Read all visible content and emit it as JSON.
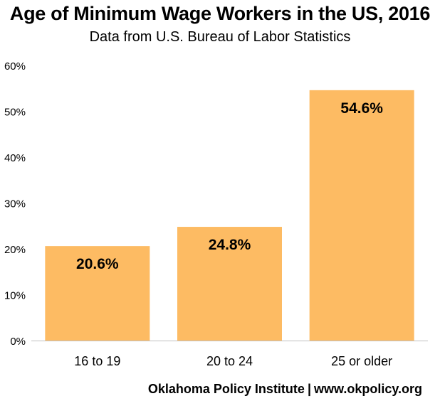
{
  "title": "Age of Minimum Wage Workers in the US, 2016",
  "subtitle": "Data from U.S. Bureau of Labor Statistics",
  "footer": {
    "org": "Oklahoma Policy Institute",
    "separator": "|",
    "url": "www.okpolicy.org"
  },
  "colors": {
    "bar": "#fdbb63",
    "gridline": "#d9d9d9",
    "axis": "#bfbfbf"
  },
  "chart_data": {
    "type": "bar",
    "categories": [
      "16 to 19",
      "20 to 24",
      "25 or older"
    ],
    "values": [
      20.6,
      24.8,
      54.6
    ],
    "data_labels": [
      "20.6%",
      "24.8%",
      "54.6%"
    ],
    "title": "Age of Minimum Wage Workers in the US, 2016",
    "subtitle": "Data from U.S. Bureau of Labor Statistics",
    "xlabel": "",
    "ylabel": "",
    "ylim": [
      0,
      60
    ],
    "yticks": [
      0,
      10,
      20,
      30,
      40,
      50,
      60
    ],
    "ytick_labels": [
      "0%",
      "10%",
      "20%",
      "30%",
      "40%",
      "50%",
      "60%"
    ],
    "grid": false,
    "legend": "none"
  }
}
